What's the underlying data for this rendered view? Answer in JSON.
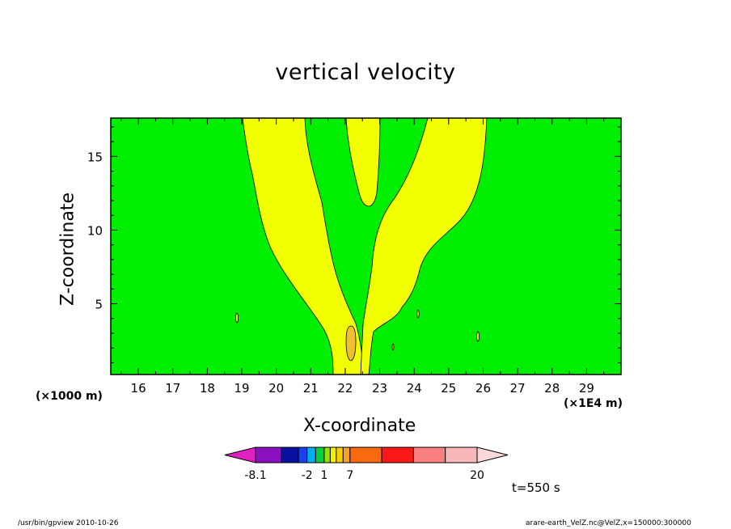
{
  "chart_data": {
    "type": "heatmap",
    "title": "vertical velocity",
    "xlabel": "X-coordinate",
    "ylabel": "Z-coordinate",
    "x_unit": "(×1000 m)",
    "x_unit2": "(×1E4 m)",
    "xlim": [
      15.2,
      30.0
    ],
    "ylim": [
      0.2,
      17.6
    ],
    "x_ticks": [
      16,
      17,
      18,
      19,
      20,
      21,
      22,
      23,
      24,
      25,
      26,
      27,
      28,
      29
    ],
    "y_ticks": [
      5,
      10,
      15
    ],
    "time_label": "t=550 s",
    "background_level_color": "#00ee00",
    "contour_colors": {
      "positive": "#f2ff00",
      "strong": "#f0c030"
    },
    "colorbar": {
      "colors": [
        "#e020c0",
        "#8a10c0",
        "#0a10a0",
        "#1c40f0",
        "#00b0f0",
        "#00d040",
        "#98e000",
        "#f8f000",
        "#f8d000",
        "#f8a020",
        "#f86a10",
        "#f81818",
        "#f88080",
        "#f8b8b8",
        "#f8d8d8"
      ],
      "tick_labels": [
        "-8.1",
        "-2",
        "1",
        "7",
        "20"
      ]
    },
    "footer_left": "/usr/bin/gpview   2010-10-26",
    "footer_right": "arare-earth_VelZ.nc@VelZ,x=150000:300000"
  }
}
